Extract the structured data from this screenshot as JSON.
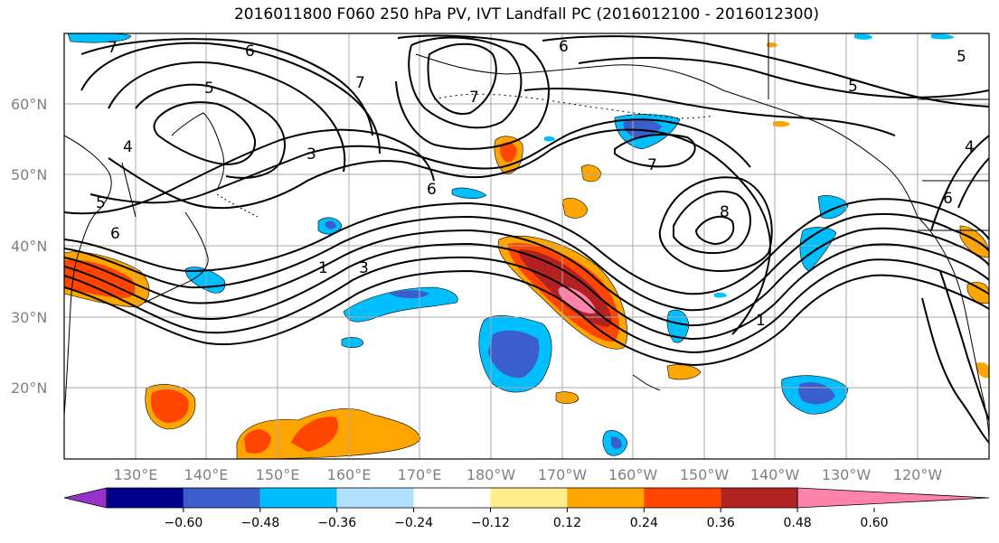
{
  "title": "2016011800 F060 250 hPa PV, IVT Landfall PC (2016012100 - 2016012300)",
  "lat_labels": [
    "60°N",
    "50°N",
    "40°N",
    "30°N",
    "20°N"
  ],
  "lon_labels": [
    "130°E",
    "140°E",
    "150°E",
    "160°E",
    "170°E",
    "180°W",
    "170°W",
    "160°W",
    "150°W",
    "140°W",
    "130°W",
    "120°W"
  ],
  "contour_labels": [
    "7",
    "6",
    "5",
    "4",
    "3",
    "7",
    "7",
    "6",
    "5",
    "1",
    "3",
    "6",
    "7",
    "8",
    "1",
    "6",
    "5",
    "4",
    "6",
    "5"
  ],
  "colorbar": {
    "ticks": [
      "−0.60",
      "−0.48",
      "−0.36",
      "−0.24",
      "−0.12",
      "0.12",
      "0.24",
      "0.36",
      "0.48",
      "0.60"
    ],
    "colors": [
      "#9932cc",
      "#00008b",
      "#3a5fcd",
      "#00bfff",
      "#b0e2ff",
      "#ffffff",
      "#ffec8b",
      "#ffa500",
      "#ff4500",
      "#b22222",
      "#ff82ab"
    ]
  },
  "colors": {
    "frame": "#000000",
    "grid": "#a9a9a9",
    "contour": "#000000",
    "coast": "#000000",
    "label": "#808080"
  }
}
